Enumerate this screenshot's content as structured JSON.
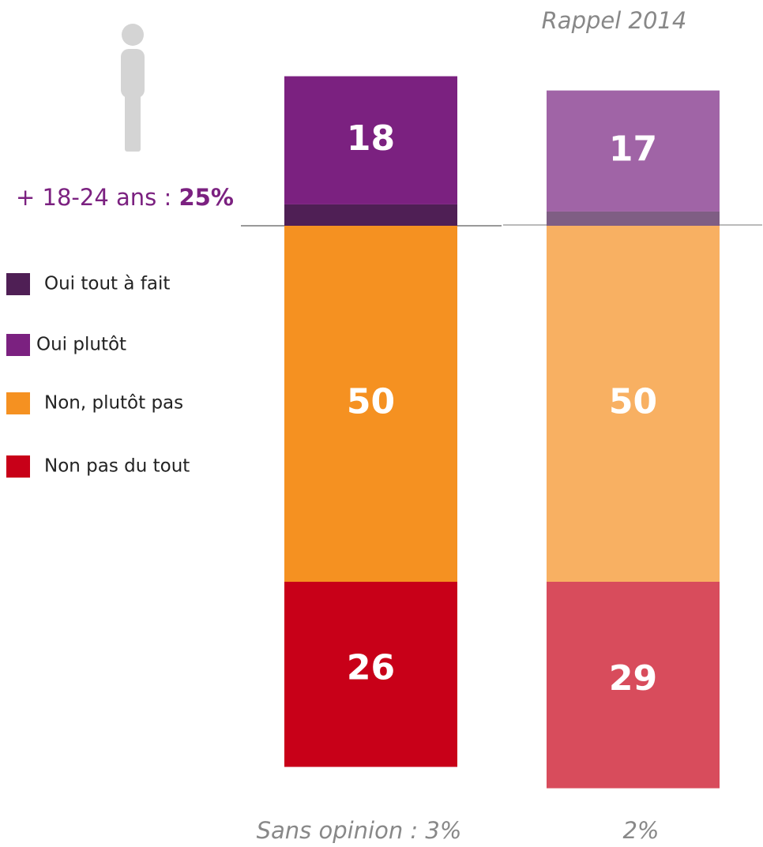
{
  "chart_data": {
    "type": "bar",
    "stacked": true,
    "categories": [
      null,
      "Rappel 2014"
    ],
    "series": [
      {
        "name": "Oui tout à fait",
        "colors": [
          "#4f1f55",
          "#7f5e84"
        ],
        "values": [
          3,
          2
        ]
      },
      {
        "name": "Oui plutôt",
        "colors": [
          "#7b2180",
          "#a064a6"
        ],
        "values": [
          18,
          17
        ]
      },
      {
        "name": "Non, plutôt pas",
        "colors": [
          "#f59121",
          "#f8b062"
        ],
        "values": [
          50,
          50
        ]
      },
      {
        "name": "Non pas du tout",
        "colors": [
          "#c80018",
          "#d84c5c"
        ],
        "values": [
          26,
          29
        ]
      }
    ],
    "annotation": {
      "text": "+ 18-24 ans :",
      "highlight": "25%"
    },
    "footnotes": [
      "Sans opinion : 3%",
      "2%"
    ]
  }
}
